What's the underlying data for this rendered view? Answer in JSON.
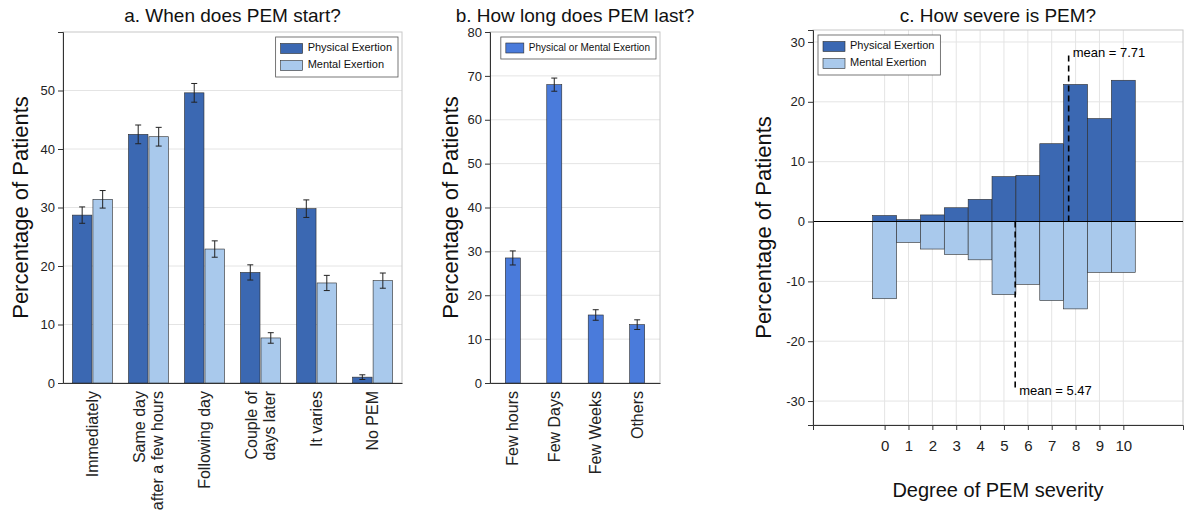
{
  "chart_data": [
    {
      "type": "bar",
      "title": "a. When does PEM start?",
      "ylabel": "Percentage of Patients",
      "categories": [
        "Immediately",
        "Same day\nafter a few hours",
        "Following day",
        "Couple of\ndays later",
        "It varies",
        "No PEM"
      ],
      "series": [
        {
          "name": "Physical Exertion",
          "color": "#3b68b2",
          "values": [
            28.7,
            42.5,
            49.6,
            18.9,
            29.8,
            1.0
          ],
          "errors": [
            1.4,
            1.6,
            1.6,
            1.3,
            1.5,
            0.4
          ]
        },
        {
          "name": "Mental Exertion",
          "color": "#a9c9ec",
          "values": [
            31.4,
            42.1,
            22.9,
            7.7,
            17.1,
            17.5
          ],
          "errors": [
            1.5,
            1.6,
            1.4,
            0.9,
            1.3,
            1.3
          ]
        }
      ],
      "ylim": [
        0,
        60
      ],
      "yticks": [
        0,
        10,
        20,
        30,
        40,
        50
      ],
      "grid": true,
      "legend": "upper right"
    },
    {
      "type": "bar",
      "title": "b. How long does PEM last?",
      "ylabel": "Percentage of Patients",
      "categories": [
        "Few hours",
        "Few Days",
        "Few Weeks",
        "Others"
      ],
      "series": [
        {
          "name": "Physical or Mental Exertion",
          "color": "#4a7bdb",
          "values": [
            28.5,
            68.0,
            15.5,
            13.3
          ],
          "errors": [
            1.6,
            1.5,
            1.2,
            1.1
          ]
        }
      ],
      "ylim": [
        0,
        80
      ],
      "yticks": [
        0,
        10,
        20,
        30,
        40,
        50,
        60,
        70,
        80
      ],
      "grid": true,
      "legend": "upper right"
    },
    {
      "type": "histogram",
      "title": "c. How severe is PEM?",
      "xlabel": "Degree of PEM severity",
      "ylabel": "Percentage of Patients",
      "bins": [
        -0.5,
        0.5,
        1.5,
        2.5,
        3.5,
        4.5,
        5.5,
        6.5,
        7.5,
        8.5,
        9.5,
        10.5
      ],
      "series": [
        {
          "name": "Physical Exertion",
          "color": "#3b68b2",
          "values": [
            1.0,
            0.3,
            1.1,
            2.3,
            3.7,
            7.5,
            7.7,
            13.0,
            22.9,
            17.2,
            23.6
          ]
        },
        {
          "name": "Mental Exertion",
          "color": "#a9c9ec",
          "values": [
            -12.9,
            -3.5,
            -4.6,
            -5.5,
            -6.4,
            -12.2,
            -10.5,
            -13.2,
            -14.6,
            -8.5,
            -8.5
          ]
        }
      ],
      "xlim": [
        -3,
        12.5
      ],
      "xticks": [
        0,
        1,
        2,
        3,
        4,
        5,
        6,
        7,
        8,
        9,
        10
      ],
      "ylim": [
        -34,
        32
      ],
      "yticks": [
        -30,
        -20,
        -10,
        0,
        10,
        20,
        30
      ],
      "grid": true,
      "legend": "upper left",
      "annotations": [
        {
          "text": "mean = 7.71",
          "x": 7.71,
          "y": 28
        },
        {
          "text": "mean = 5.47",
          "x": 5.47,
          "y": -28
        }
      ]
    }
  ]
}
